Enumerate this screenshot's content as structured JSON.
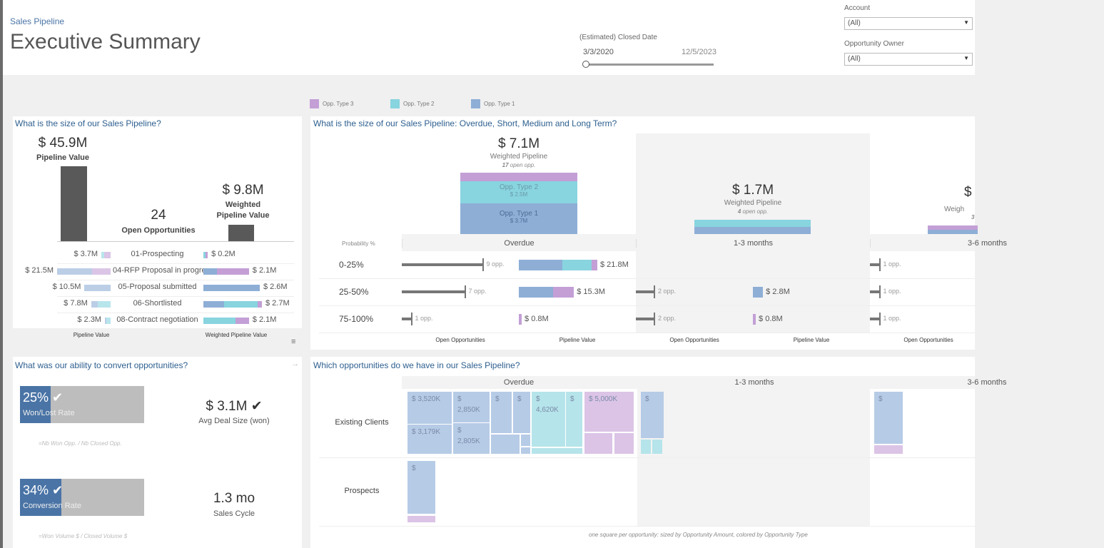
{
  "colors": {
    "type1": "#8eaed6",
    "type2": "#88d4df",
    "type3": "#c39fd6",
    "dark": "#595959",
    "accent": "#2d5f8f",
    "kpi": "#4a74a6",
    "kpi_bg": "#bdbdbd",
    "tm1": "#b6cbe6",
    "tm2": "#b5e4ea",
    "tm3": "#dbc4e6"
  },
  "header": {
    "breadcrumb": "Sales Pipeline",
    "title": "Executive Summary"
  },
  "filters": {
    "date_label": "(Estimated) Closed Date",
    "date_start": "3/3/2020",
    "date_end": "12/5/2023",
    "account_label": "Account",
    "account_value": "(All)",
    "owner_label": "Opportunity Owner",
    "owner_value": "(All)"
  },
  "legend": [
    {
      "label": "Opp. Type 3",
      "color": "#c39fd6"
    },
    {
      "label": "Opp. Type 2",
      "color": "#88d4df"
    },
    {
      "label": "Opp. Type 1",
      "color": "#8eaed6"
    }
  ],
  "size_panel": {
    "title": "What is the size of our Sales Pipeline?",
    "pipeline_value": "$ 45.9M",
    "pipeline_label": "Pipeline Value",
    "open_opps": "24",
    "open_opps_label": "Open Opportunities",
    "weighted_value": "$ 9.8M",
    "weighted_label": "Weighted Pipeline Value",
    "stages": [
      {
        "name": "01-Prospecting",
        "pipeline": "$ 3.7M",
        "pipeline_m": 3.7,
        "weighted": "$ 0.2M",
        "weighted_m": 0.2,
        "p_mix": [
          0,
          0.3,
          0.7
        ],
        "w_mix": [
          0,
          0.5,
          0.5
        ]
      },
      {
        "name": "04-RFP Proposal in progress",
        "pipeline": "$ 21.5M",
        "pipeline_m": 21.5,
        "weighted": "$ 2.1M",
        "weighted_m": 2.1,
        "p_mix": [
          0.65,
          0,
          0.35
        ],
        "w_mix": [
          0.3,
          0,
          0.7
        ]
      },
      {
        "name": "05-Proposal submitted",
        "pipeline": "$ 10.5M",
        "pipeline_m": 10.5,
        "weighted": "$ 2.6M",
        "weighted_m": 2.6,
        "p_mix": [
          1,
          0,
          0
        ],
        "w_mix": [
          1,
          0,
          0
        ]
      },
      {
        "name": "06-Shortlisted",
        "pipeline": "$ 7.8M",
        "pipeline_m": 7.8,
        "weighted": "$ 2.7M",
        "weighted_m": 2.7,
        "p_mix": [
          0.35,
          0.65,
          0
        ],
        "w_mix": [
          0.35,
          0.58,
          0.07
        ]
      },
      {
        "name": "08-Contract negotiation",
        "pipeline": "$ 2.3M",
        "pipeline_m": 2.3,
        "weighted": "$ 2.1M",
        "weighted_m": 2.1,
        "p_mix": [
          0.3,
          0.7,
          0
        ],
        "w_mix": [
          0,
          0.7,
          0.3
        ]
      }
    ],
    "axis_left": "Pipeline Value",
    "axis_right": "Weighted Pipeline Value"
  },
  "term_panel": {
    "title": "What is the size of our Sales Pipeline: Overdue, Short, Medium and Long Term?",
    "prob_header": "Probability %",
    "groups": [
      {
        "name": "Overdue",
        "weighted": "$ 7.1M",
        "weighted_label": "Weighted Pipeline",
        "open": "17",
        "open_suffix": "open opp.",
        "type2_label": "Opp. Type 2",
        "type2_value": "$ 2.5M",
        "type1_label": "Opp. Type 1",
        "type1_value": "$ 3.7M"
      },
      {
        "name": "1-3 months",
        "weighted": "$ 1.7M",
        "weighted_label": "Weighted Pipeline",
        "open": "4",
        "open_suffix": "open opp."
      },
      {
        "name": "3-6 months",
        "weighted": "$",
        "weighted_label": "Weigh",
        "open": "3"
      }
    ],
    "rows": [
      {
        "prob": "0-25%",
        "cells": [
          {
            "opp": 9,
            "opp_label": "9 opp.",
            "value": "$ 21.8M",
            "value_m": 21.8,
            "mix": [
              0.55,
              0.38,
              0.07
            ]
          },
          {},
          {
            "opp": 1,
            "opp_label": "1 opp."
          }
        ]
      },
      {
        "prob": "25-50%",
        "cells": [
          {
            "opp": 7,
            "opp_label": "7 opp.",
            "value": "$ 15.3M",
            "value_m": 15.3,
            "mix": [
              0.62,
              0,
              0.38
            ]
          },
          {
            "opp": 2,
            "opp_label": "2 opp.",
            "value": "$ 2.8M",
            "value_m": 2.8,
            "mix": [
              1,
              0,
              0
            ]
          },
          {
            "opp": 1,
            "opp_label": "1 opp."
          }
        ]
      },
      {
        "prob": "75-100%",
        "cells": [
          {
            "opp": 1,
            "opp_label": "1 opp.",
            "value": "$ 0.8M",
            "value_m": 0.8,
            "mix": [
              0,
              0,
              1
            ]
          },
          {
            "opp": 2,
            "opp_label": "2 opp.",
            "value": "$ 0.8M",
            "value_m": 0.8,
            "mix": [
              0,
              0,
              1
            ]
          },
          {
            "opp": 1,
            "opp_label": "1 opp."
          }
        ]
      }
    ],
    "axis_opp": "Open Opportunities",
    "axis_value": "Pipeline Value"
  },
  "convert_panel": {
    "title": "What was our ability to convert opportunities?",
    "winrate": {
      "value": "25%",
      "pct": 25,
      "label": "Won/Lost Rate",
      "check": "✔",
      "note": "=Nb Won Opp. / Nb Closed Opp."
    },
    "conversion": {
      "value": "34%",
      "pct": 34,
      "label": "Conversion Rate",
      "check": "✔",
      "note": "=Won Volume $ / Closed Volume $"
    },
    "deal_size": {
      "value": "$ 3.1M",
      "check": "✔",
      "label": "Avg Deal Size (won)"
    },
    "cycle": {
      "value": "1.3 mo",
      "label": "Sales Cycle"
    }
  },
  "opps_panel": {
    "title": "Which opportunities do we have in our Sales Pipeline?",
    "columns": [
      "Overdue",
      "1-3 months",
      "3-6 months"
    ],
    "rows": [
      "Existing Clients",
      "Prospects"
    ],
    "tiles": [
      {
        "label": "$ 3,520K",
        "type": 1
      },
      {
        "label": "$ 3,179K",
        "type": 1
      },
      {
        "label": "$ 2,850K",
        "type": 1
      },
      {
        "label": "$ 2,805K",
        "type": 1
      },
      {
        "label": "$",
        "type": 1
      },
      {
        "label": "$",
        "type": 1
      },
      {
        "label": "",
        "type": 1
      },
      {
        "label": "",
        "type": 1
      },
      {
        "label": "",
        "type": 1
      },
      {
        "label": "$ 4,620K",
        "type": 2
      },
      {
        "label": "$",
        "type": 2
      },
      {
        "label": "",
        "type": 2
      },
      {
        "label": "$ 5,000K",
        "type": 3
      },
      {
        "label": "",
        "type": 3
      },
      {
        "label": "",
        "type": 3
      },
      {
        "label": "$",
        "type": 1
      },
      {
        "label": "",
        "type": 3
      },
      {
        "label": "$",
        "type": 1
      },
      {
        "label": "",
        "type": 2
      },
      {
        "label": "",
        "type": 2
      },
      {
        "label": "$",
        "type": 1
      },
      {
        "label": "",
        "type": 3
      }
    ],
    "footnote": "one square per opportunity: sized by Opportunity Amount, colored by Opportunity Type"
  }
}
